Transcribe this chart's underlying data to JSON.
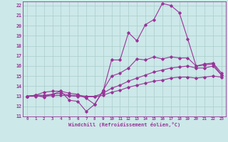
{
  "xlabel": "Windchill (Refroidissement éolien,°C)",
  "bg_color": "#cce8e8",
  "grid_color": "#aacccc",
  "line_color": "#993399",
  "xlim": [
    -0.5,
    23.5
  ],
  "ylim": [
    11,
    22.4
  ],
  "xticks": [
    0,
    1,
    2,
    3,
    4,
    5,
    6,
    7,
    8,
    9,
    10,
    11,
    12,
    13,
    14,
    15,
    16,
    17,
    18,
    19,
    20,
    21,
    22,
    23
  ],
  "yticks": [
    11,
    12,
    13,
    14,
    15,
    16,
    17,
    18,
    19,
    20,
    21,
    22
  ],
  "lines": [
    {
      "x": [
        0,
        1,
        2,
        3,
        4,
        5,
        6,
        7,
        8,
        9,
        10,
        11,
        12,
        13,
        14,
        15,
        16,
        17,
        18,
        19,
        20,
        21,
        22,
        23
      ],
      "y": [
        13.0,
        13.1,
        12.9,
        13.2,
        13.5,
        12.6,
        12.5,
        11.5,
        12.2,
        13.5,
        16.6,
        16.6,
        19.3,
        18.5,
        20.1,
        20.6,
        22.2,
        22.0,
        21.3,
        18.7,
        16.0,
        16.1,
        16.2,
        15.1
      ]
    },
    {
      "x": [
        0,
        1,
        2,
        3,
        4,
        5,
        6,
        7,
        8,
        9,
        10,
        11,
        12,
        13,
        14,
        15,
        16,
        17,
        18,
        19,
        20,
        21,
        22,
        23
      ],
      "y": [
        13.0,
        13.1,
        13.4,
        13.5,
        13.5,
        13.3,
        13.2,
        12.8,
        12.2,
        13.6,
        15.0,
        15.3,
        15.8,
        16.7,
        16.6,
        16.9,
        16.7,
        16.9,
        16.8,
        16.8,
        16.0,
        16.2,
        16.3,
        15.3
      ]
    },
    {
      "x": [
        0,
        1,
        2,
        3,
        4,
        5,
        6,
        7,
        8,
        9,
        10,
        11,
        12,
        13,
        14,
        15,
        16,
        17,
        18,
        19,
        20,
        21,
        22,
        23
      ],
      "y": [
        13.0,
        13.1,
        13.1,
        13.2,
        13.3,
        13.1,
        13.1,
        13.0,
        13.0,
        13.3,
        13.8,
        14.1,
        14.5,
        14.8,
        15.1,
        15.4,
        15.6,
        15.8,
        15.9,
        16.0,
        15.8,
        15.8,
        16.0,
        15.1
      ]
    },
    {
      "x": [
        0,
        1,
        2,
        3,
        4,
        5,
        6,
        7,
        8,
        9,
        10,
        11,
        12,
        13,
        14,
        15,
        16,
        17,
        18,
        19,
        20,
        21,
        22,
        23
      ],
      "y": [
        13.0,
        13.0,
        13.05,
        13.05,
        13.1,
        13.05,
        13.0,
        12.95,
        12.95,
        13.1,
        13.4,
        13.6,
        13.9,
        14.1,
        14.3,
        14.5,
        14.6,
        14.8,
        14.9,
        14.9,
        14.8,
        14.9,
        15.0,
        14.9
      ]
    }
  ]
}
